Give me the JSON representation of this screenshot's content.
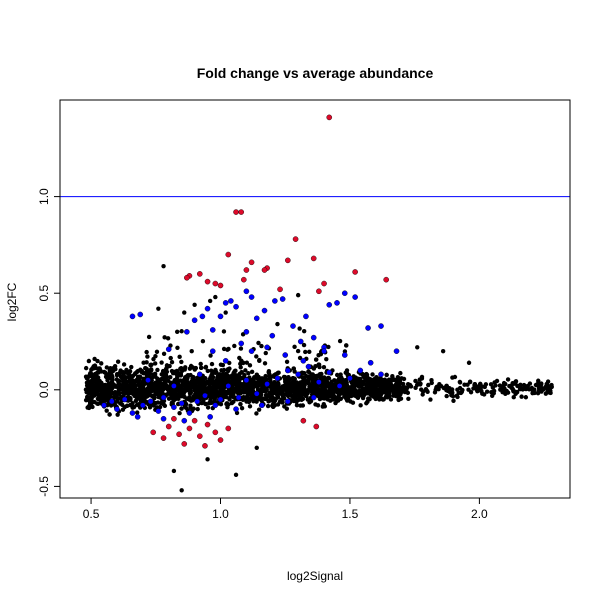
{
  "chart_data": {
    "type": "scatter",
    "title": "Fold change vs average abundance",
    "xlabel": "log2Signal",
    "ylabel": "log2FC",
    "xlim": [
      0.38,
      2.35
    ],
    "ylim": [
      -0.56,
      1.5
    ],
    "x_ticks": [
      0.5,
      1.0,
      1.5,
      2.0
    ],
    "x_tick_labels": [
      "0.5",
      "1.0",
      "1.5",
      "2.0"
    ],
    "y_ticks": [
      -0.5,
      0.0,
      0.5,
      1.0
    ],
    "y_tick_labels": [
      "-0.5",
      "0.0",
      "0.5",
      "1.0"
    ],
    "grid": false,
    "legend": "none",
    "reference_line": {
      "y": 1.0,
      "color": "#0000ff"
    },
    "colors": {
      "base": "#000000",
      "blue": "#0000ff",
      "red": "#dd0a2a"
    },
    "series": [
      {
        "color": "blue",
        "points": [
          [
            0.66,
            0.38
          ],
          [
            0.69,
            0.39
          ],
          [
            0.8,
            0.21
          ],
          [
            0.87,
            0.3
          ],
          [
            0.9,
            0.36
          ],
          [
            0.93,
            0.38
          ],
          [
            0.95,
            0.42
          ],
          [
            0.97,
            0.31
          ],
          [
            1.0,
            0.38
          ],
          [
            1.02,
            0.45
          ],
          [
            1.04,
            0.46
          ],
          [
            1.06,
            0.43
          ],
          [
            1.1,
            0.51
          ],
          [
            1.12,
            0.48
          ],
          [
            1.14,
            0.37
          ],
          [
            1.17,
            0.41
          ],
          [
            1.21,
            0.46
          ],
          [
            1.24,
            0.47
          ],
          [
            1.28,
            0.33
          ],
          [
            1.31,
            0.25
          ],
          [
            1.33,
            0.38
          ],
          [
            1.36,
            0.27
          ],
          [
            1.4,
            0.22
          ],
          [
            1.45,
            0.45
          ],
          [
            1.48,
            0.5
          ],
          [
            1.52,
            0.48
          ],
          [
            1.57,
            0.32
          ],
          [
            1.62,
            0.33
          ],
          [
            1.68,
            0.2
          ],
          [
            1.42,
            0.44
          ],
          [
            0.55,
            -0.08
          ],
          [
            0.58,
            -0.06
          ],
          [
            0.6,
            -0.1
          ],
          [
            0.63,
            -0.05
          ],
          [
            0.66,
            -0.12
          ],
          [
            0.7,
            -0.08
          ],
          [
            0.73,
            -0.06
          ],
          [
            0.76,
            -0.11
          ],
          [
            0.78,
            -0.04
          ],
          [
            0.82,
            -0.09
          ],
          [
            0.85,
            -0.07
          ],
          [
            0.88,
            -0.12
          ],
          [
            0.91,
            -0.06
          ],
          [
            0.94,
            -0.03
          ],
          [
            0.98,
            -0.08
          ],
          [
            1.0,
            -0.05
          ],
          [
            1.03,
            0.02
          ],
          [
            1.07,
            -0.04
          ],
          [
            1.1,
            0.05
          ],
          [
            1.14,
            -0.02
          ],
          [
            1.18,
            0.03
          ],
          [
            1.22,
            0.06
          ],
          [
            1.26,
            0.1
          ],
          [
            1.3,
            0.08
          ],
          [
            1.34,
            0.12
          ],
          [
            1.38,
            0.04
          ],
          [
            1.42,
            0.09
          ],
          [
            1.46,
            0.02
          ],
          [
            1.5,
            0.06
          ],
          [
            1.54,
            0.1
          ],
          [
            0.72,
            0.05
          ],
          [
            0.82,
            0.02
          ],
          [
            0.92,
            0.08
          ],
          [
            1.02,
            0.15
          ],
          [
            1.12,
            0.2
          ],
          [
            1.18,
            0.22
          ],
          [
            1.25,
            0.18
          ],
          [
            1.32,
            0.15
          ],
          [
            1.4,
            0.2
          ],
          [
            1.48,
            0.18
          ],
          [
            0.97,
            0.2
          ],
          [
            1.08,
            0.24
          ],
          [
            0.86,
            -0.16
          ],
          [
            0.96,
            -0.14
          ],
          [
            1.06,
            -0.1
          ],
          [
            1.16,
            -0.08
          ],
          [
            1.26,
            -0.06
          ],
          [
            1.36,
            -0.04
          ],
          [
            0.68,
            -0.14
          ],
          [
            0.78,
            -0.15
          ],
          [
            1.58,
            0.14
          ],
          [
            1.62,
            0.08
          ],
          [
            1.2,
            0.28
          ],
          [
            1.1,
            0.3
          ]
        ]
      },
      {
        "color": "red",
        "points": [
          [
            1.42,
            1.41
          ],
          [
            1.06,
            0.92
          ],
          [
            1.08,
            0.92
          ],
          [
            1.29,
            0.78
          ],
          [
            1.03,
            0.7
          ],
          [
            1.36,
            0.68
          ],
          [
            1.26,
            0.67
          ],
          [
            1.12,
            0.66
          ],
          [
            1.18,
            0.63
          ],
          [
            1.17,
            0.62
          ],
          [
            1.1,
            0.62
          ],
          [
            0.92,
            0.6
          ],
          [
            0.88,
            0.59
          ],
          [
            0.87,
            0.58
          ],
          [
            1.52,
            0.61
          ],
          [
            1.64,
            0.57
          ],
          [
            1.4,
            0.55
          ],
          [
            0.95,
            0.56
          ],
          [
            0.98,
            0.55
          ],
          [
            1.09,
            0.57
          ],
          [
            1.23,
            0.52
          ],
          [
            1.38,
            0.51
          ],
          [
            1.0,
            0.54
          ],
          [
            0.74,
            -0.22
          ],
          [
            0.78,
            -0.25
          ],
          [
            0.8,
            -0.19
          ],
          [
            0.84,
            -0.23
          ],
          [
            0.88,
            -0.2
          ],
          [
            0.92,
            -0.24
          ],
          [
            0.95,
            -0.18
          ],
          [
            0.98,
            -0.22
          ],
          [
            1.0,
            -0.26
          ],
          [
            1.03,
            -0.2
          ],
          [
            0.86,
            -0.28
          ],
          [
            0.94,
            -0.29
          ],
          [
            0.9,
            -0.16
          ],
          [
            1.32,
            -0.16
          ],
          [
            1.37,
            -0.19
          ],
          [
            0.82,
            -0.15
          ]
        ]
      }
    ]
  }
}
